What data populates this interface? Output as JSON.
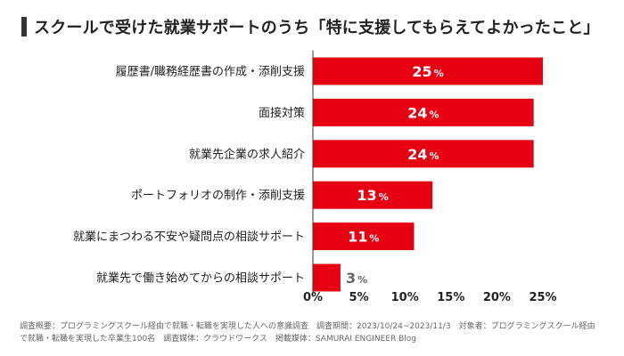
{
  "title": "スクールで受けた就業サポートのうち「特に支援してもらえてよかったこと」",
  "chart_data": {
    "type": "bar",
    "orientation": "horizontal",
    "categories": [
      "履歴書/職務経歴書の作成・添削支援",
      "面接対策",
      "就業先企業の求人紹介",
      "ポートフォリオの制作・添削支援",
      "就業にまつわる不安や疑問点の相談サポート",
      "就業先で働き始めてからの相談サポート"
    ],
    "values": [
      25,
      24,
      24,
      13,
      11,
      3
    ],
    "value_suffix": "%",
    "xlim": [
      0,
      25
    ],
    "xticks": [
      0,
      5,
      10,
      15,
      20,
      25
    ],
    "tick_labels": [
      "0%",
      "5%",
      "10%",
      "15%",
      "20%",
      "25%"
    ],
    "grid": false,
    "legend": "none",
    "bar_color": "#e60012",
    "label_inside_color": "#ffffff",
    "label_outside_color": "#666666"
  },
  "footer": {
    "line1": "調査概要：プログラミングスクール経由で就職・転職を実現した人への意識調査　調査期間：2023/10/24~2023/11/3　対象者：プログラミングスクール経由",
    "line2": "で就職・転職を実現した卒業生100名　調査媒体：クラウドワークス　掲載媒体：SAMURAI ENGINEER Blog"
  }
}
